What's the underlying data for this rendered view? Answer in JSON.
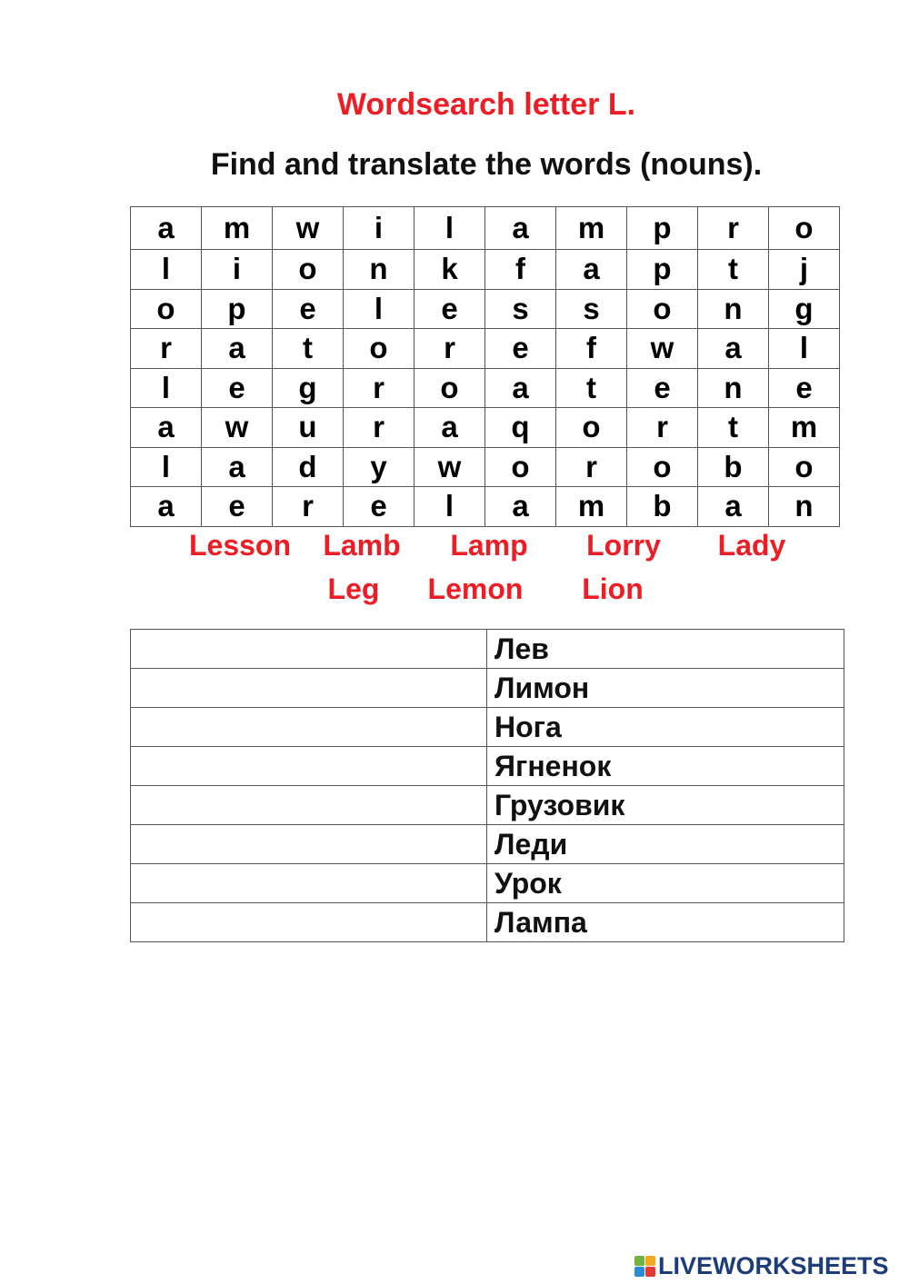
{
  "title": "Wordsearch letter L.",
  "subtitle": "Find and translate the words (nouns).",
  "grid": [
    [
      "a",
      "m",
      "w",
      "i",
      "l",
      "a",
      "m",
      "p",
      "r",
      "o"
    ],
    [
      "l",
      "i",
      "o",
      "n",
      "k",
      "f",
      "a",
      "p",
      "t",
      "j"
    ],
    [
      "o",
      "p",
      "e",
      "l",
      "e",
      "s",
      "s",
      "o",
      "n",
      "g"
    ],
    [
      "r",
      "a",
      "t",
      "o",
      "r",
      "e",
      "f",
      "w",
      "a",
      "l"
    ],
    [
      "l",
      "e",
      "g",
      "r",
      "o",
      "a",
      "t",
      "e",
      "n",
      "e"
    ],
    [
      "a",
      "w",
      "u",
      "r",
      "a",
      "q",
      "o",
      "r",
      "t",
      "m"
    ],
    [
      "l",
      "a",
      "d",
      "y",
      "w",
      "o",
      "r",
      "o",
      "b",
      "o"
    ],
    [
      "a",
      "e",
      "r",
      "e",
      "l",
      "a",
      "m",
      "b",
      "a",
      "n"
    ]
  ],
  "words": [
    "Lesson",
    "Lamb",
    "Lamp",
    "Lorry",
    "Lady",
    "Leg",
    "Lemon",
    "Lion"
  ],
  "translations": [
    {
      "answer": "",
      "russian": "Лев"
    },
    {
      "answer": "",
      "russian": "Лимон"
    },
    {
      "answer": "",
      "russian": "Нога"
    },
    {
      "answer": "",
      "russian": "Ягненок"
    },
    {
      "answer": "",
      "russian": "Грузовик"
    },
    {
      "answer": "",
      "russian": "Леди"
    },
    {
      "answer": "",
      "russian": "Урок"
    },
    {
      "answer": "",
      "russian": "Лампа"
    }
  ],
  "logo": {
    "text": "LIVEWORKSHEETS",
    "badge": [
      "L",
      "I",
      "V",
      "E"
    ]
  },
  "colors": {
    "accent": "#ee1c24",
    "logo": "#1c3d7a"
  }
}
